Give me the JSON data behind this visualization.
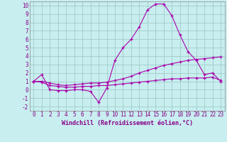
{
  "title": "",
  "xlabel": "Windchill (Refroidissement éolien,°C)",
  "ylabel": "",
  "bg_color": "#c8eef0",
  "grid_color": "#a0ccc8",
  "line_color": "#aa00aa",
  "xlim": [
    -0.5,
    23.5
  ],
  "ylim": [
    -2.5,
    10.5
  ],
  "xticks": [
    0,
    1,
    2,
    3,
    4,
    5,
    6,
    7,
    8,
    9,
    10,
    11,
    12,
    13,
    14,
    15,
    16,
    17,
    18,
    19,
    20,
    21,
    22,
    23
  ],
  "yticks": [
    -2,
    -1,
    0,
    1,
    2,
    3,
    4,
    5,
    6,
    7,
    8,
    9,
    10
  ],
  "series1_x": [
    0,
    1,
    2,
    3,
    4,
    5,
    6,
    7,
    8,
    9,
    10,
    11,
    12,
    13,
    14,
    15,
    16,
    17,
    18,
    19,
    20,
    21,
    22,
    23
  ],
  "series1_y": [
    1.0,
    1.8,
    0.0,
    -0.1,
    -0.1,
    0.0,
    0.0,
    -0.2,
    -1.5,
    0.2,
    3.5,
    5.0,
    6.0,
    7.5,
    9.5,
    10.2,
    10.2,
    8.8,
    6.5,
    4.5,
    3.5,
    1.8,
    2.0,
    1.0
  ],
  "series2_x": [
    0,
    1,
    2,
    3,
    4,
    5,
    6,
    7,
    8,
    9,
    10,
    11,
    12,
    13,
    14,
    15,
    16,
    17,
    18,
    19,
    20,
    21,
    22,
    23
  ],
  "series2_y": [
    1.0,
    1.0,
    0.8,
    0.6,
    0.5,
    0.6,
    0.7,
    0.8,
    0.8,
    0.9,
    1.1,
    1.3,
    1.6,
    2.0,
    2.3,
    2.6,
    2.9,
    3.1,
    3.3,
    3.5,
    3.6,
    3.7,
    3.8,
    3.9
  ],
  "series3_x": [
    0,
    1,
    2,
    3,
    4,
    5,
    6,
    7,
    8,
    9,
    10,
    11,
    12,
    13,
    14,
    15,
    16,
    17,
    18,
    19,
    20,
    21,
    22,
    23
  ],
  "series3_y": [
    1.0,
    0.9,
    0.5,
    0.4,
    0.3,
    0.3,
    0.4,
    0.4,
    0.5,
    0.5,
    0.6,
    0.7,
    0.8,
    0.9,
    1.0,
    1.1,
    1.2,
    1.3,
    1.3,
    1.4,
    1.4,
    1.4,
    1.5,
    1.1
  ],
  "xlabel_fontsize": 6,
  "tick_fontsize": 5.5
}
